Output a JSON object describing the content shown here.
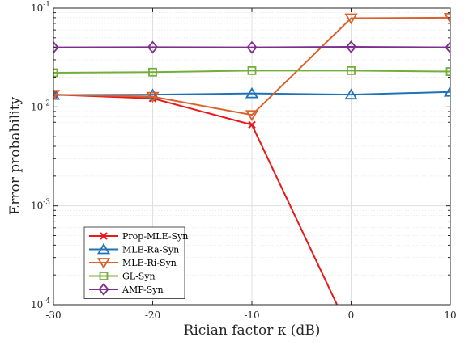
{
  "chart_data": {
    "type": "line",
    "title": "",
    "xlabel": "Rician factor κ (dB)",
    "ylabel": "Error probability",
    "x": [
      -30,
      -20,
      -10,
      0,
      10
    ],
    "xticks": [
      "-30",
      "-20",
      "-10",
      "0",
      "10"
    ],
    "xlim": [
      -30,
      10
    ],
    "yscale": "log",
    "ylim": [
      0.0001,
      0.1
    ],
    "yticks": [
      {
        "value": 0.0001,
        "base": "10",
        "exp": "-4"
      },
      {
        "value": 0.001,
        "base": "10",
        "exp": "-3"
      },
      {
        "value": 0.01,
        "base": "10",
        "exp": "-2"
      },
      {
        "value": 0.1,
        "base": "10",
        "exp": "-1"
      }
    ],
    "grid": true,
    "legend_position": "bottom-left",
    "series": [
      {
        "name": "Prop-MLE-Syn",
        "color": "#e8191c",
        "marker": "x",
        "values": [
          0.0133,
          0.0122,
          0.0066,
          5e-05,
          null
        ]
      },
      {
        "name": "MLE-Ra-Syn",
        "color": "#1f72b8",
        "marker": "triangle-up",
        "values": [
          0.0132,
          0.0133,
          0.0137,
          0.0133,
          0.0142
        ]
      },
      {
        "name": "MLE-Ri-Syn",
        "color": "#d9622b",
        "marker": "triangle-down",
        "values": [
          0.0133,
          0.0127,
          0.0083,
          0.079,
          0.08
        ]
      },
      {
        "name": "GL-Syn",
        "color": "#73ad3a",
        "marker": "square",
        "values": [
          0.0222,
          0.0225,
          0.0233,
          0.0233,
          0.0228
        ]
      },
      {
        "name": "AMP-Syn",
        "color": "#7e2f8e",
        "marker": "diamond",
        "values": [
          0.04,
          0.0402,
          0.04,
          0.0405,
          0.04
        ]
      }
    ]
  }
}
